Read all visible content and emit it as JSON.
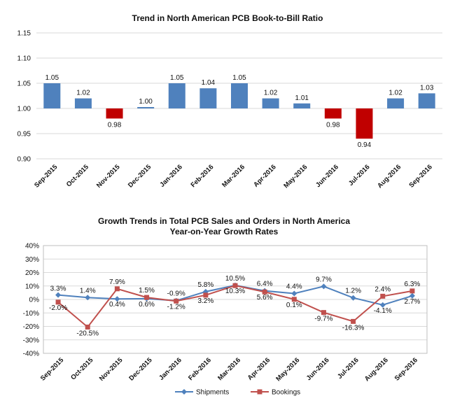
{
  "chart_data": [
    {
      "type": "bar",
      "title": "Trend in North American PCB Book-to-Bill Ratio",
      "categories": [
        "Sep-2015",
        "Oct-2015",
        "Nov-2015",
        "Dec-2015",
        "Jan-2016",
        "Feb-2016",
        "Mar-2016",
        "Apr-2016",
        "May-2016",
        "Jun-2016",
        "Jul-2016",
        "Aug-2016",
        "Sep-2016"
      ],
      "values": [
        1.05,
        1.02,
        0.98,
        1.0,
        1.05,
        1.04,
        1.05,
        1.02,
        1.01,
        0.98,
        0.94,
        1.02,
        1.03
      ],
      "value_labels": [
        "1.05",
        "1.02",
        "0.98",
        "1.00",
        "1.05",
        "1.04",
        "1.05",
        "1.02",
        "1.01",
        "0.98",
        "0.94",
        "1.02",
        "1.03"
      ],
      "baseline": 1.0,
      "ylim": [
        0.9,
        1.15
      ],
      "yticks": [
        "0.90",
        "0.95",
        "1.00",
        "1.05",
        "1.10",
        "1.15"
      ],
      "ytick_values": [
        0.9,
        0.95,
        1.0,
        1.05,
        1.1,
        1.15
      ],
      "colors": {
        "above": "#4f81bd",
        "below": "#c00000"
      },
      "grid": true
    },
    {
      "type": "line",
      "title": "Growth Trends in Total PCB Sales and Orders in North America",
      "subtitle": "Year-on-Year Growth Rates",
      "categories": [
        "Sep-2015",
        "Oct-2015",
        "Nov-2015",
        "Dec-2015",
        "Jan-2016",
        "Feb-2016",
        "Mar-2016",
        "Apr-2016",
        "May-2016",
        "Jun-2016",
        "Jul-2016",
        "Aug-2016",
        "Sep-2016"
      ],
      "ylim": [
        -40,
        40
      ],
      "yticks": [
        "-40%",
        "-30%",
        "-20%",
        "-10%",
        "0%",
        "10%",
        "20%",
        "30%",
        "40%"
      ],
      "ytick_values": [
        -40,
        -30,
        -20,
        -10,
        0,
        10,
        20,
        30,
        40
      ],
      "grid": true,
      "legend": "bottom",
      "series": [
        {
          "name": "Shipments",
          "color": "#4f81bd",
          "marker": "diamond",
          "values": [
            3.3,
            1.4,
            0.4,
            0.6,
            -0.9,
            5.8,
            10.5,
            6.4,
            4.4,
            9.7,
            1.2,
            -4.1,
            2.7
          ],
          "labels": [
            "3.3%",
            "1.4%",
            "0.4%",
            "0.6%",
            "-0.9%",
            "5.8%",
            "10.5%",
            "6.4%",
            "4.4%",
            "9.7%",
            "1.2%",
            "-4.1%",
            "2.7%"
          ]
        },
        {
          "name": "Bookings",
          "color": "#c0504d",
          "marker": "square",
          "values": [
            -2.0,
            -20.5,
            7.9,
            1.5,
            -1.2,
            3.2,
            10.3,
            5.6,
            0.1,
            -9.7,
            -16.3,
            2.4,
            6.3
          ],
          "labels": [
            "-2.0%",
            "-20.5%",
            "7.9%",
            "1.5%",
            "-1.2%",
            "3.2%",
            "10.3%",
            "5.6%",
            "0.1%",
            "-9.7%",
            "-16.3%",
            "2.4%",
            "6.3%"
          ]
        }
      ]
    }
  ]
}
